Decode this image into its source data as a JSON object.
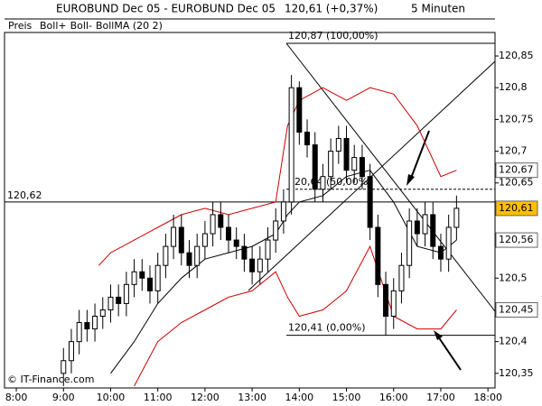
{
  "chart_data": {
    "type": "candlestick",
    "title": "EUROBUND Dec 05 - EUROBUND Dec 05",
    "price_text": "120,61 (+0,37%)",
    "interval": "5 Minuten",
    "price_name": "Preis",
    "x": [
      540,
      550,
      560,
      570,
      580,
      590,
      600,
      610,
      620,
      630,
      640,
      650,
      660,
      670,
      680,
      690,
      700,
      710,
      720,
      730,
      740,
      750,
      760,
      770,
      780,
      790,
      800,
      810,
      820,
      830,
      840,
      850,
      860,
      870,
      880,
      890,
      900,
      910,
      920,
      930,
      940,
      950,
      960,
      970,
      980,
      990,
      1000,
      1010,
      1020,
      1030,
      1040
    ],
    "open": [
      120.35,
      120.37,
      120.4,
      120.43,
      120.42,
      120.44,
      120.45,
      120.47,
      120.46,
      120.49,
      120.51,
      120.5,
      120.48,
      120.52,
      120.55,
      120.58,
      120.54,
      120.52,
      120.55,
      120.57,
      120.6,
      120.58,
      120.56,
      120.55,
      120.53,
      120.51,
      120.53,
      120.56,
      120.59,
      120.62,
      120.8,
      120.73,
      120.71,
      120.64,
      120.66,
      120.7,
      120.72,
      120.67,
      120.69,
      120.66,
      120.58,
      120.49,
      120.44,
      120.48,
      120.52,
      120.59,
      120.57,
      120.6,
      120.55,
      120.53,
      120.58
    ],
    "high": [
      120.39,
      120.42,
      120.45,
      120.45,
      120.46,
      120.47,
      120.49,
      120.49,
      120.51,
      120.53,
      120.53,
      120.52,
      120.54,
      120.57,
      120.6,
      120.6,
      120.56,
      120.57,
      120.59,
      120.62,
      120.62,
      120.6,
      120.58,
      120.57,
      120.55,
      120.55,
      120.58,
      120.61,
      120.64,
      120.82,
      120.81,
      120.75,
      120.73,
      120.68,
      120.72,
      120.74,
      120.74,
      120.71,
      120.71,
      120.68,
      120.6,
      120.51,
      120.5,
      120.54,
      120.61,
      120.61,
      120.62,
      120.62,
      120.57,
      120.6,
      120.63
    ],
    "low": [
      120.33,
      120.35,
      120.38,
      120.4,
      120.4,
      120.42,
      120.43,
      120.44,
      120.44,
      120.47,
      120.48,
      120.46,
      120.46,
      120.5,
      120.53,
      120.52,
      120.5,
      120.5,
      120.53,
      120.55,
      120.56,
      120.54,
      120.53,
      120.51,
      120.49,
      120.49,
      120.51,
      120.54,
      120.57,
      120.6,
      120.71,
      120.69,
      120.62,
      120.62,
      120.64,
      120.68,
      120.65,
      120.65,
      120.64,
      120.56,
      120.47,
      120.41,
      120.42,
      120.46,
      120.5,
      120.55,
      120.55,
      120.53,
      120.51,
      120.51,
      120.56
    ],
    "close": [
      120.37,
      120.4,
      120.43,
      120.42,
      120.44,
      120.45,
      120.47,
      120.46,
      120.49,
      120.51,
      120.5,
      120.48,
      120.52,
      120.55,
      120.58,
      120.54,
      120.52,
      120.55,
      120.57,
      120.6,
      120.58,
      120.56,
      120.55,
      120.53,
      120.51,
      120.53,
      120.56,
      120.59,
      120.62,
      120.8,
      120.73,
      120.71,
      120.64,
      120.66,
      120.7,
      120.72,
      120.67,
      120.69,
      120.66,
      120.58,
      120.49,
      120.44,
      120.48,
      120.52,
      120.59,
      120.57,
      120.6,
      120.55,
      120.53,
      120.58,
      120.61
    ],
    "series": [
      {
        "name": "Boll+",
        "color": "#cc0000",
        "x": [
          585,
          600,
          630,
          660,
          690,
          720,
          750,
          780,
          810,
          825,
          840,
          870,
          900,
          930,
          960,
          990,
          1020,
          1040
        ],
        "values": [
          120.52,
          120.54,
          120.56,
          120.58,
          120.6,
          120.61,
          120.6,
          120.61,
          120.62,
          120.74,
          120.78,
          120.8,
          120.78,
          120.8,
          120.79,
          120.74,
          120.66,
          120.67
        ]
      },
      {
        "name": "Boll-",
        "color": "#cc0000",
        "x": [
          585,
          600,
          630,
          660,
          690,
          720,
          750,
          780,
          810,
          825,
          840,
          870,
          900,
          930,
          960,
          990,
          1020,
          1040
        ],
        "values": [
          null,
          null,
          120.33,
          120.4,
          120.43,
          120.45,
          120.47,
          120.48,
          120.51,
          120.47,
          120.44,
          120.45,
          120.48,
          120.55,
          120.44,
          120.42,
          120.42,
          120.45
        ]
      },
      {
        "name": "BollMA (20 2)",
        "color": "#000000",
        "x": [
          585,
          600,
          630,
          660,
          690,
          720,
          750,
          780,
          810,
          825,
          840,
          870,
          900,
          930,
          960,
          990,
          1020,
          1040
        ],
        "values": [
          null,
          120.35,
          120.4,
          120.46,
          120.5,
          120.53,
          120.54,
          120.55,
          120.57,
          120.6,
          120.62,
          120.63,
          120.66,
          120.67,
          120.62,
          120.55,
          120.54,
          120.56
        ]
      }
    ],
    "xlim": [
      465,
      1089
    ],
    "ylim": [
      120.327,
      120.887
    ],
    "xticks": [
      {
        "value": 480,
        "label": "8:00"
      },
      {
        "value": 540,
        "label": "9:00"
      },
      {
        "value": 600,
        "label": "10:00"
      },
      {
        "value": 660,
        "label": "11:00"
      },
      {
        "value": 720,
        "label": "12:00"
      },
      {
        "value": 780,
        "label": "13:00"
      },
      {
        "value": 840,
        "label": "14:00"
      },
      {
        "value": 900,
        "label": "15:00"
      },
      {
        "value": 960,
        "label": "16:00"
      },
      {
        "value": 1020,
        "label": "17:00"
      },
      {
        "value": 1080,
        "label": "18:00"
      }
    ],
    "yticks": [
      {
        "value": 120.35,
        "label": "120,35"
      },
      {
        "value": 120.4,
        "label": "120,4"
      },
      {
        "value": 120.5,
        "label": "120,5"
      },
      {
        "value": 120.65,
        "label": "120,65"
      },
      {
        "value": 120.7,
        "label": "120,7"
      },
      {
        "value": 120.75,
        "label": "120,75"
      },
      {
        "value": 120.8,
        "label": "120,8"
      },
      {
        "value": 120.85,
        "label": "120,85"
      }
    ],
    "price_labels": [
      {
        "value": 120.67,
        "label": "120,67",
        "color": "#cc0000",
        "background": "#ffffff"
      },
      {
        "value": 120.61,
        "label": "120,61",
        "color": "#000000",
        "background": "#ffc000"
      },
      {
        "value": 120.56,
        "label": "120,56",
        "color": "#000000",
        "background": "#ffffff"
      },
      {
        "value": 120.45,
        "label": "120,45",
        "color": "#cc0000",
        "background": "#ffffff"
      }
    ],
    "fib_levels": [
      {
        "value": 120.87,
        "label": "120,87 (100,00%)"
      },
      {
        "value": 120.64,
        "label": "120,64 (50,00%)"
      },
      {
        "value": 120.41,
        "label": "120,41 (0,00%)"
      }
    ],
    "crosshair": {
      "value": 120.62,
      "label": "120,62"
    },
    "copyright": "© IT-Finance.com"
  }
}
